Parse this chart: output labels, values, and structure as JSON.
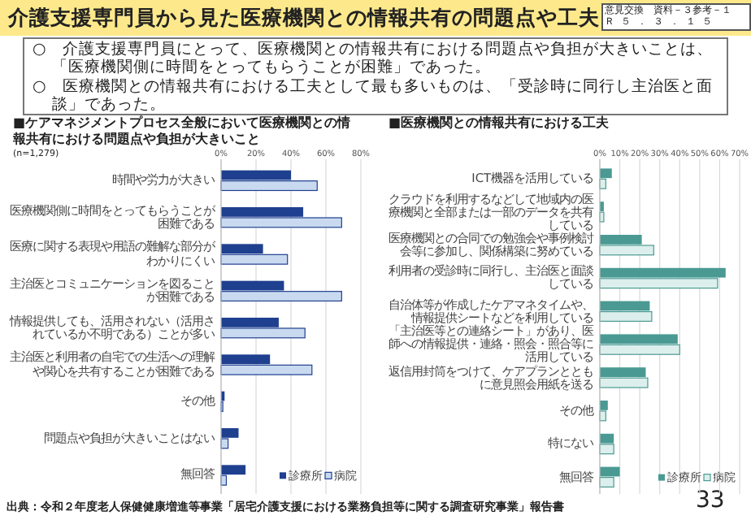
{
  "chart_data": [
    {
      "type": "bar",
      "orientation": "horizontal",
      "title": "■ケアマネジメントプロセス全般において医療機関との情報共有における問題点や負担が大きいこと",
      "annotations": [
        "介護支援専門員から見た医療機関との情報共有の問題点や工夫",
        "意見交換　資料－３参考－１",
        "Ｒ５．３．１５",
        "○　介護支援専門員にとって、医療機関との情報共有における問題点や負担が大きいことは、「医療機関側に時間をとってもらうことが困難」であった。",
        "○　医療機関との情報共有における工夫として最も多いものは、「受診時に同行し主治医と面談」であった。",
        "(n=1,279)",
        "出典：令和２年度老人保健健康増進等事業「居宅介護支援における業務負担等に関する調査研究事業」報告書",
        "33"
      ],
      "categories": [
        "時間や労力が大きい",
        "医療機関側に時間をとってもらうことが困難である",
        "医療に関する表現や用語の難解な部分がわかりにくい",
        "主治医とコミュニケーションを図ることが困難である",
        "情報提供しても、活用されない（活用されているか不明である）ことが多い",
        "主治医と利用者の自宅での生活への理解や関心を共有することが困難である",
        "その他",
        "問題点や負担が大きいことはない",
        "無回答"
      ],
      "series": [
        {
          "name": "診療所",
          "color": "#1f3f8f",
          "values": [
            40,
            47,
            24,
            36,
            33,
            28,
            2,
            10,
            14
          ]
        },
        {
          "name": "病院",
          "color": "#c9daf0",
          "values": [
            55,
            69,
            38,
            69,
            48,
            52,
            1,
            4,
            3
          ]
        }
      ],
      "xlim": [
        0,
        80
      ],
      "xticks": [
        {
          "value": 0,
          "label": "0%"
        },
        {
          "value": 20,
          "label": "20%"
        },
        {
          "value": 40,
          "label": "40%"
        },
        {
          "value": 60,
          "label": "60%"
        },
        {
          "value": 80,
          "label": "80%"
        }
      ],
      "grid": "x",
      "legend": "bottom right"
    },
    {
      "type": "bar",
      "orientation": "horizontal",
      "title": "■医療機関との情報共有における工夫",
      "categories": [
        "ICT機器を活用している",
        "クラウドを利用するなどして地域内の医療機関と全部または一部のデータを共有している",
        "医療機関との合同での勉強会や事例検討会等に参加し、関係構築に努めている",
        "利用者の受診時に同行し、主治医と面談している",
        "自治体等が作成したケアマネタイムや、情報提供シートなどを利用している",
        "「主治医等との連絡シート」があり、医師への情報提供・連絡・照会・照合等に活用している",
        "返信用封筒をつけて、ケアプランとともに意見照会用紙を送る",
        "その他",
        "特にない",
        "無回答"
      ],
      "series": [
        {
          "name": "診療所",
          "color": "#4a9a93",
          "values": [
            6,
            2,
            21,
            63,
            25,
            39,
            23,
            4,
            7,
            10
          ]
        },
        {
          "name": "病院",
          "color": "#dcefec",
          "values": [
            3,
            2,
            27,
            59,
            26,
            40,
            24,
            3,
            7,
            7
          ]
        }
      ],
      "xlim": [
        0,
        70
      ],
      "xticks": [
        {
          "value": 0,
          "label": "0%"
        },
        {
          "value": 10,
          "label": "10%"
        },
        {
          "value": 20,
          "label": "20%"
        },
        {
          "value": 30,
          "label": "30%"
        },
        {
          "value": 40,
          "label": "40%"
        },
        {
          "value": 50,
          "label": "50%"
        },
        {
          "value": 60,
          "label": "60%"
        },
        {
          "value": 70,
          "label": "70%"
        }
      ],
      "grid": "x",
      "legend": "bottom right"
    }
  ]
}
